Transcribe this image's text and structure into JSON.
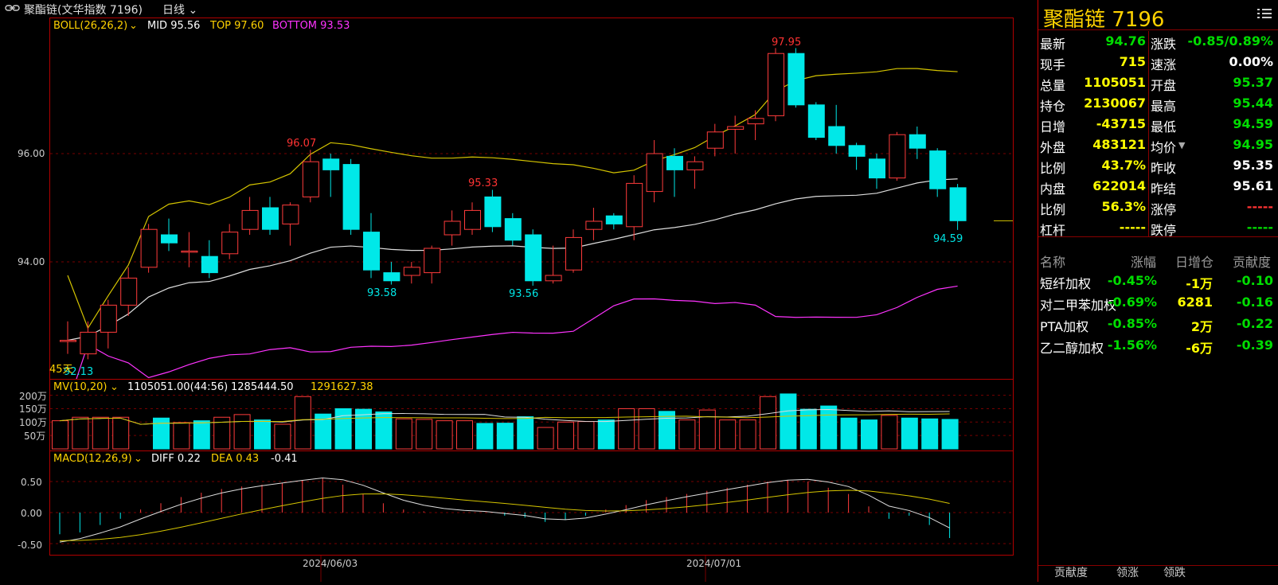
{
  "header": {
    "symbol_title": "聚酯链(文华指数 7196)",
    "period": "日线"
  },
  "boll": {
    "label": "BOLL(26,26,2)",
    "mid": "MID 95.56",
    "top": "TOP 97.60",
    "bottom": "BOTTOM 93.53"
  },
  "price_axis": [
    "96.00",
    "94.00"
  ],
  "annotations": {
    "high1": "96.07",
    "high2": "95.33",
    "high3": "97.95",
    "low1": "93.58",
    "low2": "93.56",
    "low3": "94.59",
    "left": "92.13",
    "days": "45天"
  },
  "mv": {
    "label": "MV(10,20)",
    "v1": "1105051.00(44:56)",
    "v2": "1285444.50",
    "v3": "1291627.38",
    "axis": [
      "200万",
      "150万",
      "100万",
      "50万"
    ]
  },
  "macd": {
    "label": "MACD(12,26,9)",
    "diff": "DIFF 0.22",
    "dea": "DEA 0.43",
    "macd": "-0.41",
    "axis": [
      "0.50",
      "0.00",
      "-0.50"
    ]
  },
  "dates": [
    "2024/06/03",
    "2024/07/01"
  ],
  "chart_data": {
    "type": "candlestick",
    "candles": [
      {
        "o": 92.55,
        "c": 92.55,
        "h": 92.9,
        "l": 92.3
      },
      {
        "o": 92.3,
        "c": 92.7,
        "h": 92.9,
        "l": 92.2
      },
      {
        "o": 92.7,
        "c": 93.2,
        "h": 93.3,
        "l": 92.4
      },
      {
        "o": 93.2,
        "c": 93.7,
        "h": 93.9,
        "l": 93.0
      },
      {
        "o": 93.9,
        "c": 94.6,
        "h": 94.7,
        "l": 93.8
      },
      {
        "o": 94.5,
        "c": 94.35,
        "h": 94.8,
        "l": 94.2
      },
      {
        "o": 94.2,
        "c": 94.2,
        "h": 94.55,
        "l": 93.9
      },
      {
        "o": 94.1,
        "c": 93.8,
        "h": 94.4,
        "l": 93.7
      },
      {
        "o": 94.15,
        "c": 94.55,
        "h": 94.7,
        "l": 94.05
      },
      {
        "o": 94.6,
        "c": 94.95,
        "h": 95.2,
        "l": 94.5
      },
      {
        "o": 95.0,
        "c": 94.6,
        "h": 95.2,
        "l": 94.5
      },
      {
        "o": 94.7,
        "c": 95.05,
        "h": 95.1,
        "l": 94.3
      },
      {
        "o": 95.2,
        "c": 95.85,
        "h": 96.07,
        "l": 95.1
      },
      {
        "o": 95.9,
        "c": 95.7,
        "h": 96.0,
        "l": 95.2
      },
      {
        "o": 95.8,
        "c": 94.6,
        "h": 95.9,
        "l": 94.5
      },
      {
        "o": 94.55,
        "c": 93.85,
        "h": 94.9,
        "l": 93.7
      },
      {
        "o": 93.8,
        "c": 93.65,
        "h": 94.0,
        "l": 93.58
      },
      {
        "o": 93.75,
        "c": 93.9,
        "h": 94.0,
        "l": 93.6
      },
      {
        "o": 93.8,
        "c": 94.25,
        "h": 94.3,
        "l": 93.6
      },
      {
        "o": 94.5,
        "c": 94.75,
        "h": 94.95,
        "l": 94.3
      },
      {
        "o": 94.6,
        "c": 94.95,
        "h": 95.1,
        "l": 94.5
      },
      {
        "o": 95.2,
        "c": 94.65,
        "h": 95.33,
        "l": 94.55
      },
      {
        "o": 94.8,
        "c": 94.4,
        "h": 94.9,
        "l": 94.3
      },
      {
        "o": 94.5,
        "c": 93.65,
        "h": 94.6,
        "l": 93.56
      },
      {
        "o": 93.65,
        "c": 93.75,
        "h": 94.3,
        "l": 93.6
      },
      {
        "o": 93.85,
        "c": 94.45,
        "h": 94.6,
        "l": 93.8
      },
      {
        "o": 94.6,
        "c": 94.75,
        "h": 95.0,
        "l": 94.4
      },
      {
        "o": 94.85,
        "c": 94.7,
        "h": 94.9,
        "l": 94.6
      },
      {
        "o": 94.65,
        "c": 95.45,
        "h": 95.6,
        "l": 94.4
      },
      {
        "o": 95.3,
        "c": 96.0,
        "h": 96.25,
        "l": 95.1
      },
      {
        "o": 95.95,
        "c": 95.7,
        "h": 96.1,
        "l": 95.2
      },
      {
        "o": 95.7,
        "c": 95.85,
        "h": 95.95,
        "l": 95.35
      },
      {
        "o": 96.1,
        "c": 96.4,
        "h": 96.55,
        "l": 95.95
      },
      {
        "o": 96.45,
        "c": 96.5,
        "h": 96.7,
        "l": 96.0
      },
      {
        "o": 96.55,
        "c": 96.65,
        "h": 96.8,
        "l": 96.25
      },
      {
        "o": 96.7,
        "c": 97.85,
        "h": 97.95,
        "l": 96.6
      },
      {
        "o": 97.85,
        "c": 96.9,
        "h": 97.95,
        "l": 96.85
      },
      {
        "o": 96.9,
        "c": 96.3,
        "h": 96.95,
        "l": 96.25
      },
      {
        "o": 96.5,
        "c": 96.15,
        "h": 96.9,
        "l": 96.0
      },
      {
        "o": 96.15,
        "c": 95.95,
        "h": 96.2,
        "l": 95.7
      },
      {
        "o": 95.9,
        "c": 95.55,
        "h": 96.0,
        "l": 95.35
      },
      {
        "o": 95.55,
        "c": 96.35,
        "h": 96.4,
        "l": 95.5
      },
      {
        "o": 96.35,
        "c": 96.1,
        "h": 96.5,
        "l": 95.9
      },
      {
        "o": 96.05,
        "c": 95.35,
        "h": 96.1,
        "l": 95.2
      },
      {
        "o": 95.37,
        "c": 94.76,
        "h": 95.44,
        "l": 94.59
      }
    ],
    "volumes": [
      105,
      118,
      118,
      118,
      0,
      115,
      98,
      105,
      118,
      128,
      108,
      92,
      195,
      130,
      150,
      148,
      138,
      112,
      110,
      105,
      105,
      95,
      96,
      120,
      80,
      100,
      102,
      108,
      150,
      150,
      140,
      108,
      145,
      108,
      108,
      195,
      205,
      148,
      160,
      115,
      108,
      125,
      115,
      112,
      110
    ],
    "macd_hist": [
      -0.35,
      -0.32,
      -0.2,
      -0.1,
      0.05,
      0.15,
      0.25,
      0.32,
      0.38,
      0.42,
      0.45,
      0.48,
      0.52,
      0.55,
      0.45,
      0.3,
      0.15,
      0.05,
      0.02,
      0.0,
      0.0,
      0.0,
      -0.05,
      -0.08,
      -0.15,
      -0.12,
      -0.05,
      0.05,
      0.12,
      0.2,
      0.25,
      0.3,
      0.35,
      0.4,
      0.45,
      0.5,
      0.52,
      0.5,
      0.4,
      0.3,
      0.1,
      -0.1,
      -0.05,
      -0.2,
      -0.41
    ]
  },
  "right_panel": {
    "title_name": "聚酯链",
    "title_code": "7196",
    "quotes_left": [
      {
        "label": "最新",
        "value": "94.76",
        "color": "grn"
      },
      {
        "label": "现手",
        "value": "715",
        "color": "yel"
      },
      {
        "label": "总量",
        "value": "1105051",
        "color": "yel"
      },
      {
        "label": "持仓",
        "value": "2130067",
        "color": "yel"
      },
      {
        "label": "日增",
        "value": "-43715",
        "color": "yel"
      },
      {
        "label": "外盘",
        "value": "483121",
        "color": "yel"
      },
      {
        "label": "比例",
        "value": "43.7%",
        "color": "yel"
      },
      {
        "label": "内盘",
        "value": "622014",
        "color": "yel"
      },
      {
        "label": "比例",
        "value": "56.3%",
        "color": "yel"
      },
      {
        "label": "杠杆",
        "value": "-----",
        "color": "yel"
      }
    ],
    "quotes_right": [
      {
        "label": "涨跌",
        "value": "-0.85/0.89%",
        "color": "grn"
      },
      {
        "label": "速涨",
        "value": "0.00%",
        "color": "wht"
      },
      {
        "label": "开盘",
        "value": "95.37",
        "color": "grn"
      },
      {
        "label": "最高",
        "value": "95.44",
        "color": "grn"
      },
      {
        "label": "最低",
        "value": "94.59",
        "color": "grn"
      },
      {
        "label": "均价",
        "value": "94.95",
        "color": "grn"
      },
      {
        "label": "昨收",
        "value": "95.35",
        "color": "wht"
      },
      {
        "label": "昨结",
        "value": "95.61",
        "color": "wht"
      },
      {
        "label": "涨停",
        "value": "-----",
        "color": "red"
      },
      {
        "label": "跌停",
        "value": "-----",
        "color": "grn"
      }
    ],
    "components_header": [
      "名称",
      "涨幅",
      "日增仓",
      "贡献度"
    ],
    "components": [
      {
        "name": "短纤加权",
        "change": "-0.45%",
        "oi": "-1万",
        "contrib": "-0.10"
      },
      {
        "name": "对二甲苯加权",
        "change": "-0.69%",
        "oi": "6281",
        "contrib": "-0.16"
      },
      {
        "name": "PTA加权",
        "change": "-0.85%",
        "oi": "2万",
        "contrib": "-0.22"
      },
      {
        "name": "乙二醇加权",
        "change": "-1.56%",
        "oi": "-6万",
        "contrib": "-0.39"
      }
    ],
    "tabs": [
      "贡献度",
      "领涨",
      "领跌"
    ]
  }
}
